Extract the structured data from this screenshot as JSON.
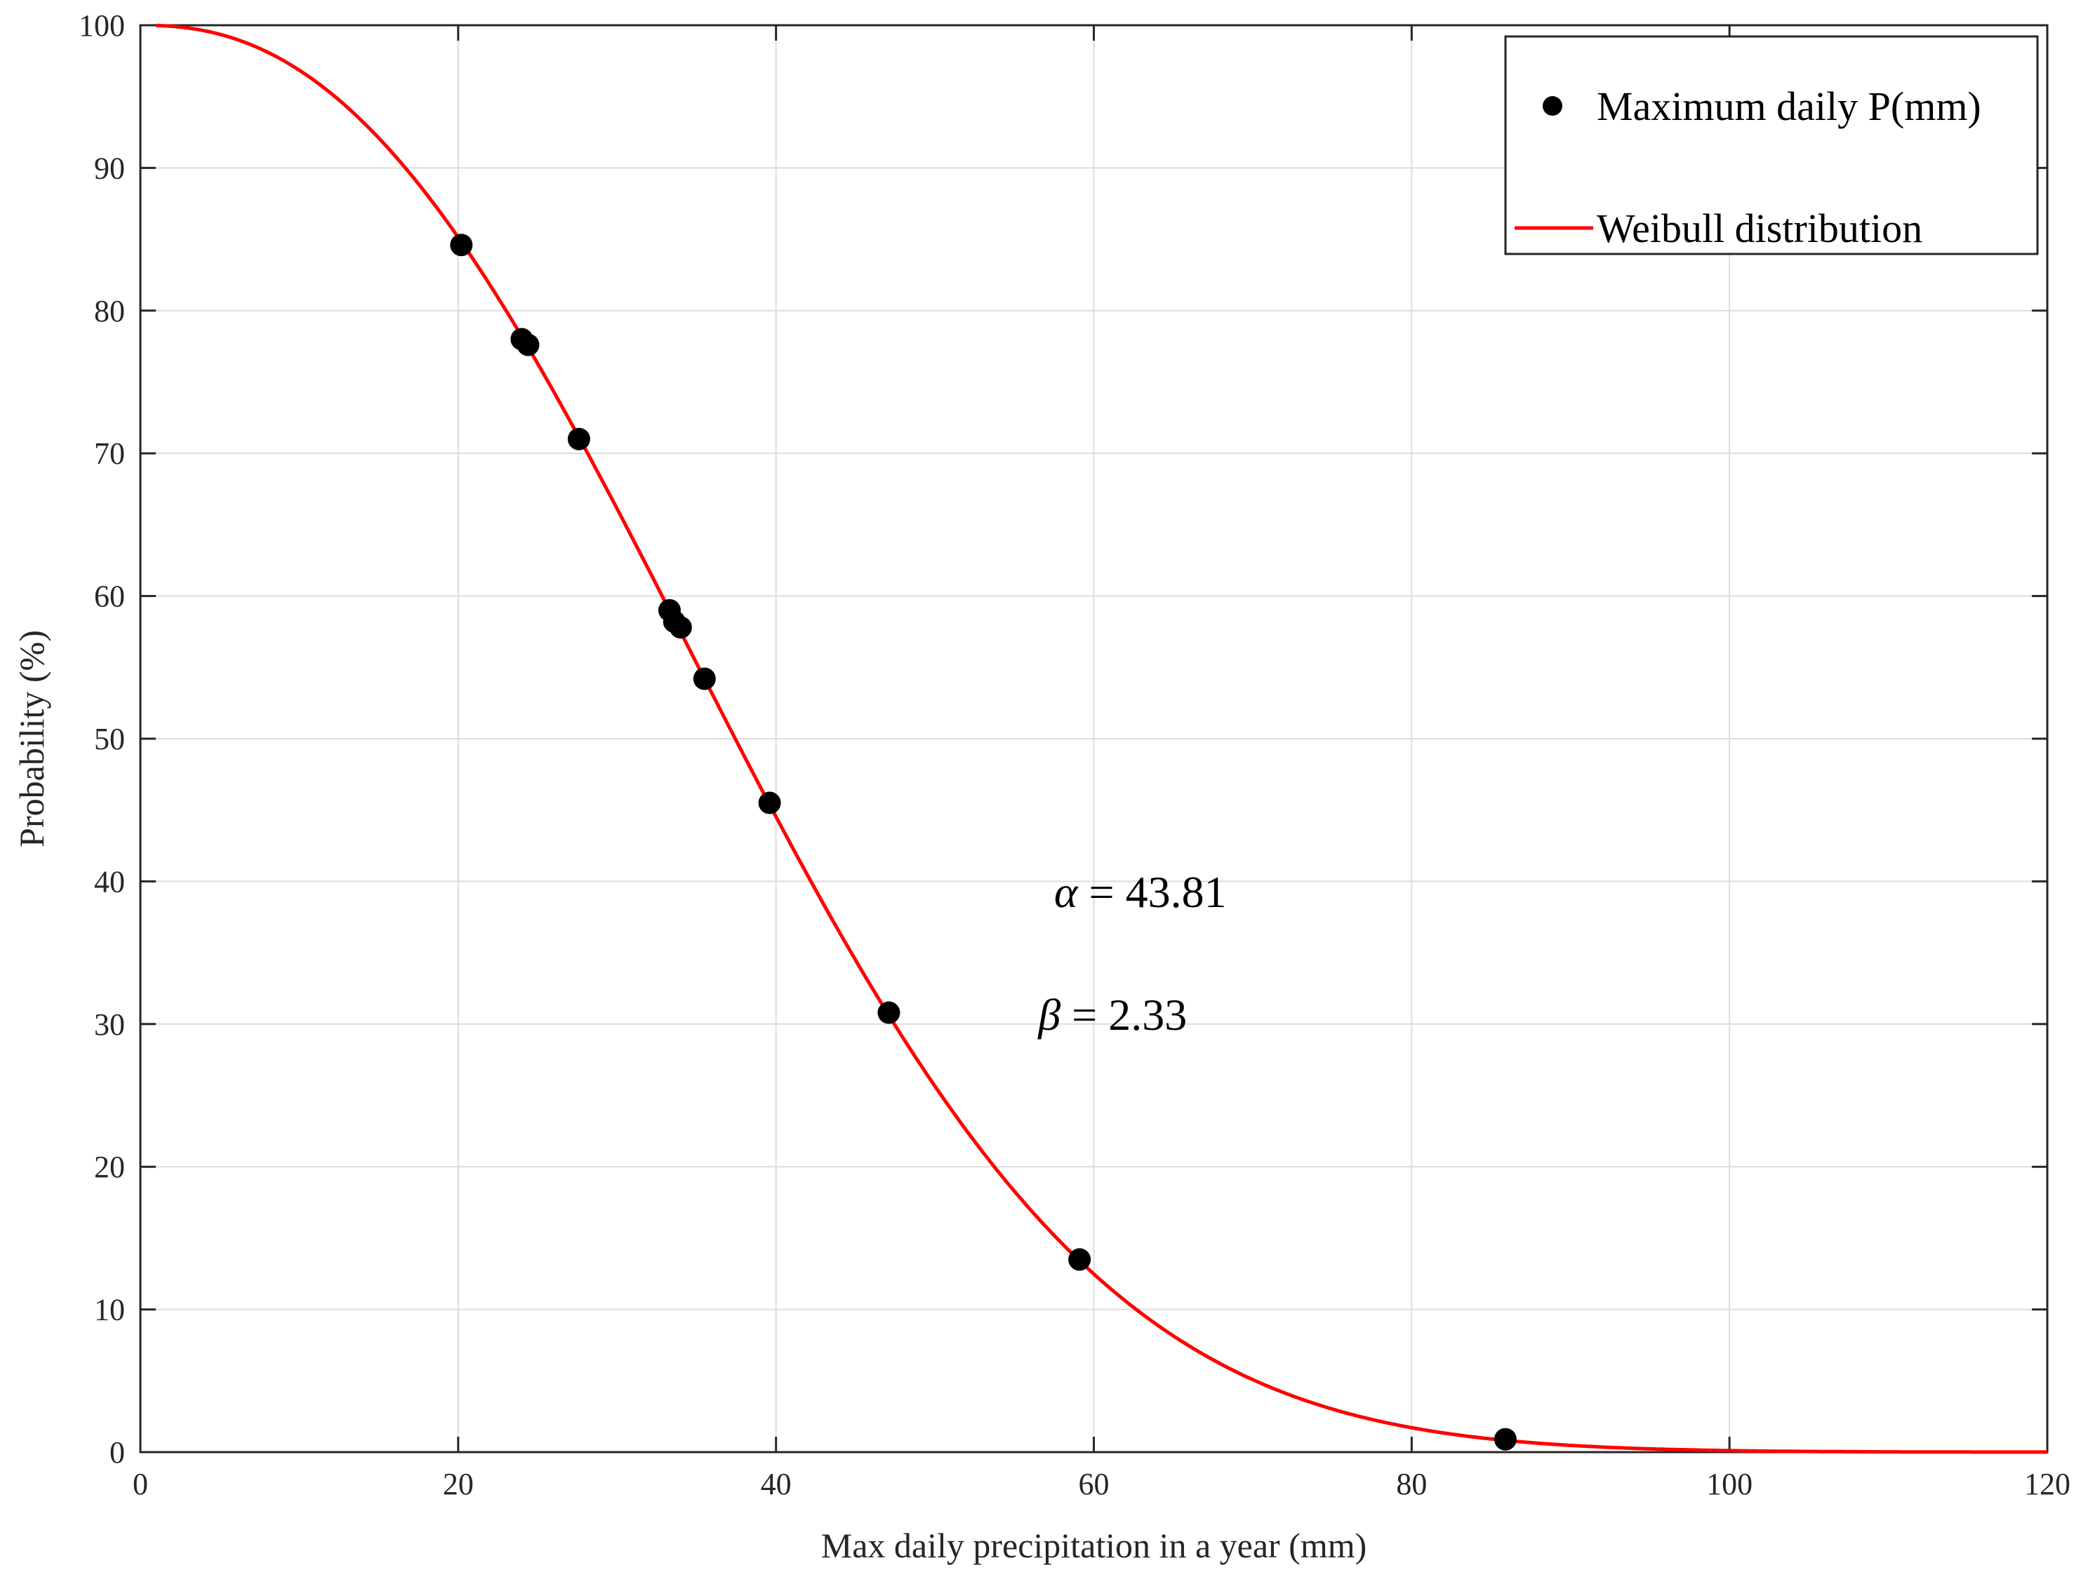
{
  "chart_data": {
    "type": "scatter",
    "title": "",
    "xlabel": "Max daily precipitation in a year (mm)",
    "ylabel": "Probability (%)",
    "xlim": [
      0,
      120
    ],
    "ylim": [
      0,
      100
    ],
    "xticks": [
      0,
      20,
      40,
      60,
      80,
      100,
      120
    ],
    "yticks": [
      0,
      10,
      20,
      30,
      40,
      50,
      60,
      70,
      80,
      90,
      100
    ],
    "grid": true,
    "legend_position": "top-right",
    "colors": {
      "points": "#000000",
      "curve": "#ff0000",
      "grid": "#dcdcdc",
      "axis": "#262626"
    },
    "series": [
      {
        "name": "Maximum daily P(mm)",
        "kind": "scatter",
        "points": [
          [
            20.2,
            84.6
          ],
          [
            24.0,
            78.0
          ],
          [
            24.4,
            77.6
          ],
          [
            27.6,
            71.0
          ],
          [
            33.3,
            59.0
          ],
          [
            33.6,
            58.2
          ],
          [
            34.0,
            57.8
          ],
          [
            35.5,
            54.2
          ],
          [
            39.6,
            45.5
          ],
          [
            47.1,
            30.8
          ],
          [
            59.1,
            13.5
          ],
          [
            85.9,
            0.9
          ]
        ]
      },
      {
        "name": "Weibull distribution",
        "kind": "line",
        "function": "survival",
        "alpha": 43.81,
        "beta": 2.33,
        "x_range": [
          1,
          120
        ]
      }
    ],
    "annotations": [
      {
        "symbol": "α",
        "text": " = 43.81",
        "x": 57.5,
        "y": 38.2
      },
      {
        "symbol": "β",
        "text": " = 2.33",
        "x": 56.5,
        "y": 29.6
      }
    ]
  }
}
